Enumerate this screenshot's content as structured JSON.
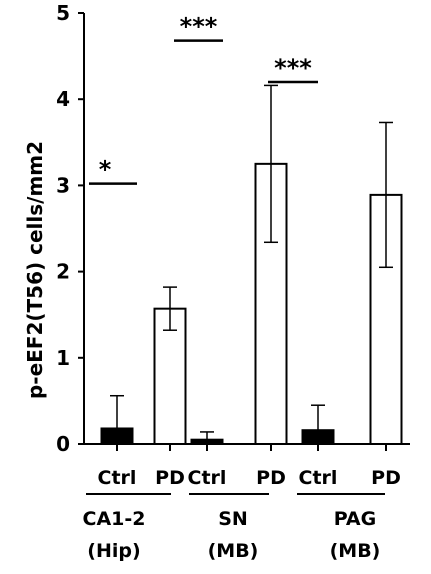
{
  "chart_data": {
    "type": "bar",
    "ylabel": "p-eEF2(T56) cells/mm2",
    "ylim": [
      0,
      5
    ],
    "yticks": [
      "0",
      "1",
      "2",
      "3",
      "4",
      "5"
    ],
    "grid": false,
    "bars": [
      {
        "label": "Ctrl",
        "group": 0,
        "value": 0.18,
        "error": 0.38,
        "fill": "#000000"
      },
      {
        "label": "PD",
        "group": 0,
        "value": 1.57,
        "error": 0.25,
        "fill": "#ffffff"
      },
      {
        "label": "Ctrl",
        "group": 1,
        "value": 0.05,
        "error": 0.09,
        "fill": "#000000"
      },
      {
        "label": "PD",
        "group": 1,
        "value": 3.25,
        "error": 0.91,
        "fill": "#ffffff"
      },
      {
        "label": "Ctrl",
        "group": 2,
        "value": 0.16,
        "error": 0.29,
        "fill": "#000000"
      },
      {
        "label": "PD",
        "group": 2,
        "value": 2.89,
        "error": 0.84,
        "fill": "#ffffff"
      }
    ],
    "groups": [
      {
        "line1": "CA1-2",
        "line2": "(Hip)"
      },
      {
        "line1": "SN",
        "line2": "(MB)"
      },
      {
        "line1": "PAG",
        "line2": "(MB)"
      }
    ],
    "significance": [
      {
        "label": "*",
        "level": 3.02,
        "from_bar": 0,
        "to_bar": 0,
        "extend": "left"
      },
      {
        "label": "***",
        "level": 4.68,
        "from_bar": 1,
        "to_bar": 2,
        "extend": "between"
      },
      {
        "label": "***",
        "level": 4.2,
        "from_bar": 3,
        "to_bar": 3,
        "extend": "left"
      }
    ]
  }
}
